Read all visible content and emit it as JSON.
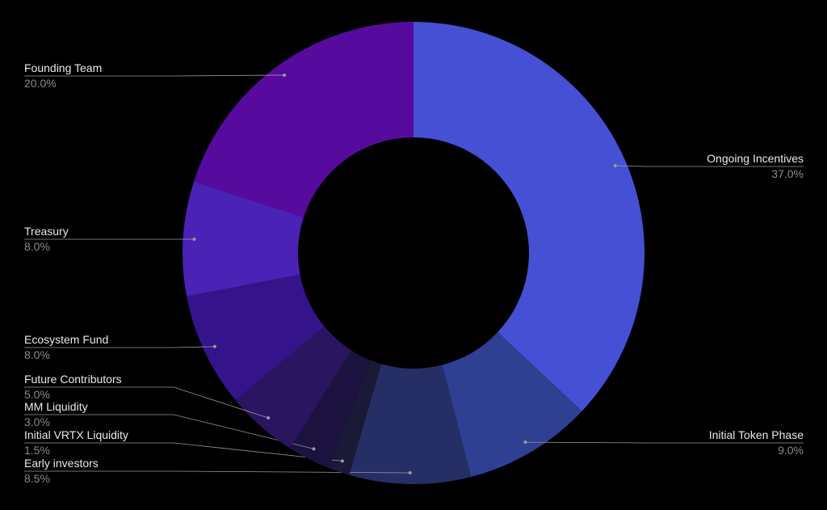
{
  "chart_data": {
    "type": "donut",
    "categories": [
      "Ongoing Incentives",
      "Initial Token Phase",
      "Early investors",
      "Initial VRTX Liquidity",
      "MM Liquidity",
      "Future Contributors",
      "Ecosystem Fund",
      "Treasury",
      "Founding Team"
    ],
    "values": [
      37,
      9,
      8.5,
      1.5,
      3,
      5,
      8,
      8,
      20
    ],
    "value_labels": [
      "37.0%",
      "9.0%",
      "8.5%",
      "1.5%",
      "3.0%",
      "5.0%",
      "8.0%",
      "8.0%",
      "20.0%"
    ],
    "colors": [
      "#4650d4",
      "#2f3f91",
      "#252f66",
      "#1a1a38",
      "#1c1240",
      "#2a1560",
      "#35138a",
      "#4a22b5",
      "#560b9e"
    ]
  }
}
